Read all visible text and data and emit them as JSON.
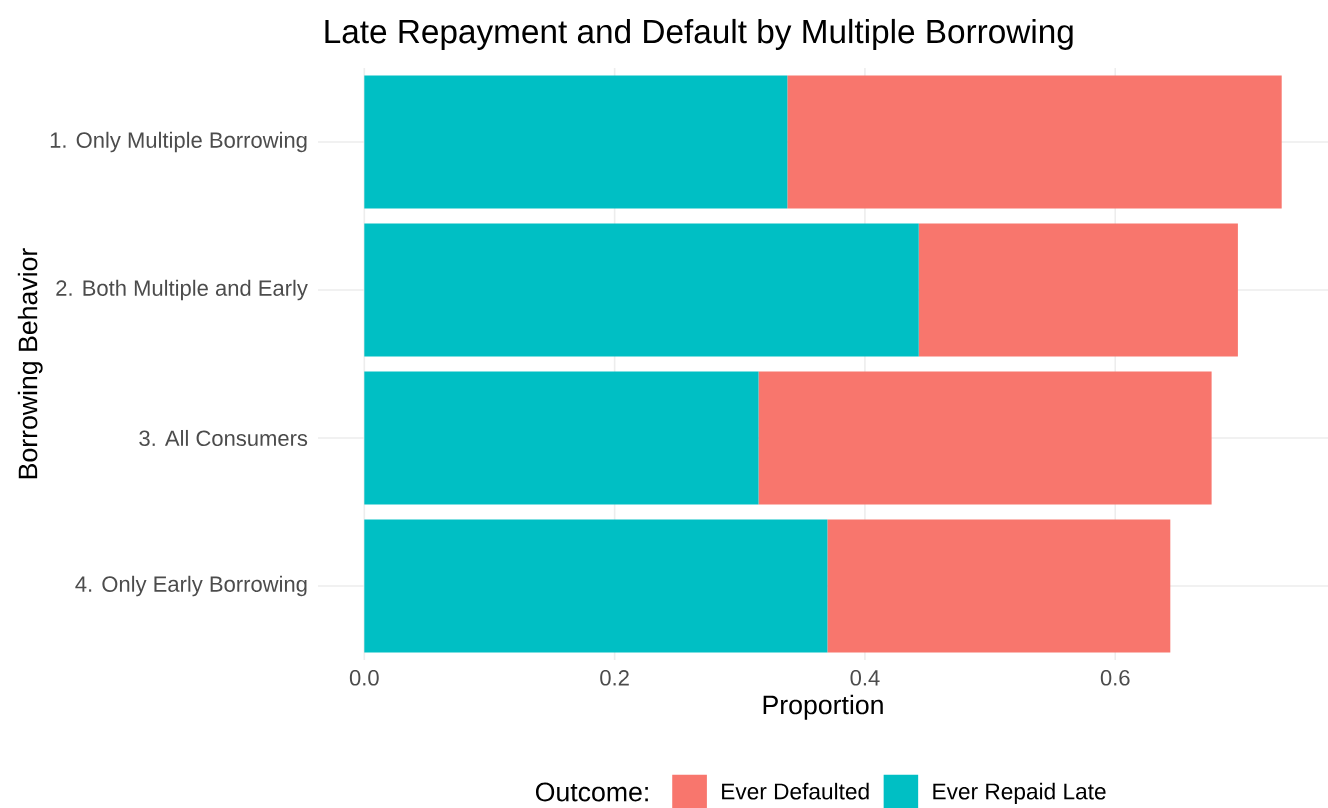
{
  "chart_data": {
    "type": "bar",
    "orientation": "horizontal",
    "stacked": true,
    "title": "Late Repayment and Default by Multiple Borrowing",
    "xlabel": "Proportion",
    "ylabel": "Borrowing Behavior",
    "legend_title": "Outcome:",
    "categories": [
      "1. Only Multiple Borrowing",
      "2. Both Multiple and Early",
      "3. All Consumers",
      "4. Only Early Borrowing"
    ],
    "series": [
      {
        "name": "Ever Repaid Late",
        "color": "#00bfc4",
        "values": [
          0.338,
          0.443,
          0.315,
          0.37
        ]
      },
      {
        "name": "Ever Defaulted",
        "color": "#f8766d",
        "values": [
          0.395,
          0.255,
          0.362,
          0.274
        ]
      }
    ],
    "xlim": [
      -0.037,
      0.77
    ],
    "xticks": [
      {
        "value": 0,
        "label": "0.0"
      },
      {
        "value": 0.2,
        "label": "0.2"
      },
      {
        "value": 0.4,
        "label": "0.4"
      },
      {
        "value": 0.6,
        "label": "0.6"
      }
    ],
    "grid": true,
    "legend": "bottom"
  }
}
